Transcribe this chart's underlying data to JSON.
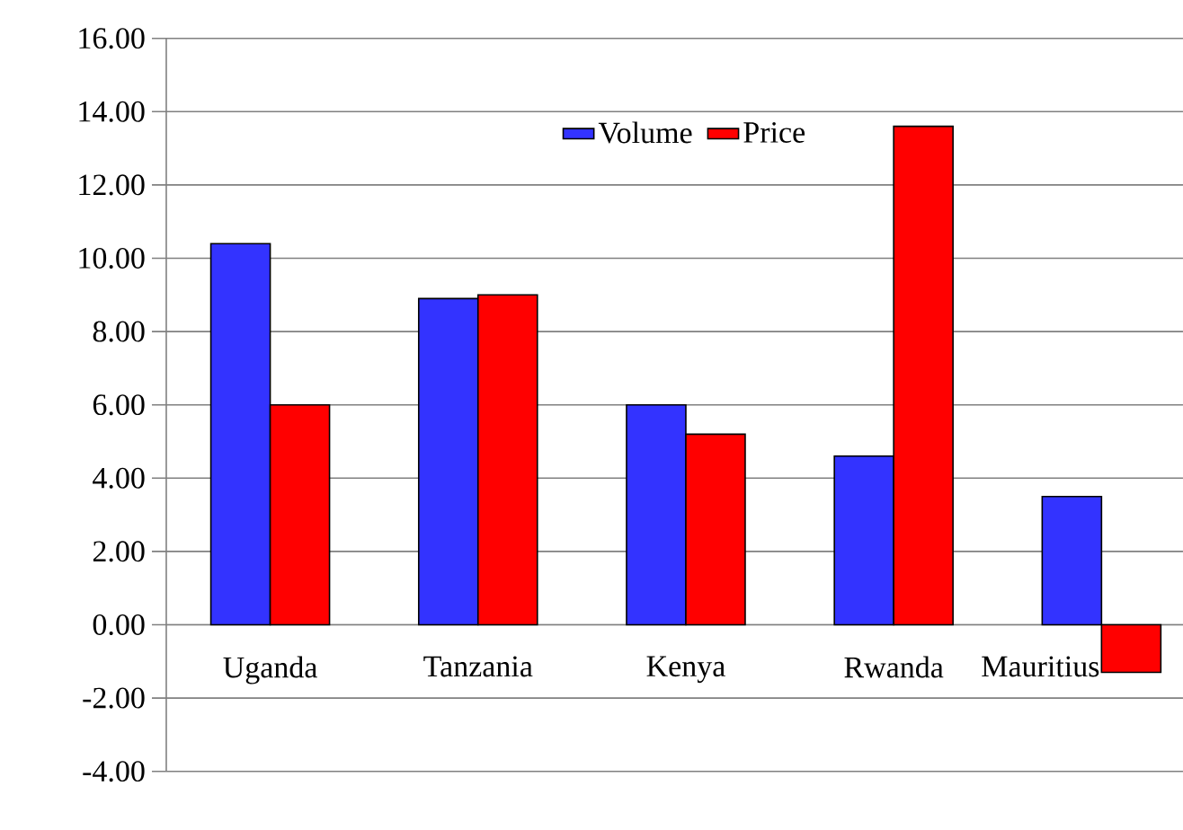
{
  "chart_data": {
    "type": "bar",
    "categories": [
      "Uganda",
      "Tanzania",
      "Kenya",
      "Rwanda",
      "Mauritius"
    ],
    "series": [
      {
        "name": "Volume",
        "color": "#3333ff",
        "values": [
          10.4,
          8.9,
          6.0,
          4.6,
          3.5
        ]
      },
      {
        "name": "Price",
        "color": "#ff0000",
        "values": [
          6.0,
          9.0,
          5.2,
          13.6,
          -1.3
        ]
      }
    ],
    "ylim": [
      -4,
      16
    ],
    "yticks": [
      {
        "value": -4,
        "label": "-4.00"
      },
      {
        "value": -2,
        "label": "-2.00"
      },
      {
        "value": 0,
        "label": "0.00"
      },
      {
        "value": 2,
        "label": "2.00"
      },
      {
        "value": 4,
        "label": "4.00"
      },
      {
        "value": 6,
        "label": "6.00"
      },
      {
        "value": 8,
        "label": "8.00"
      },
      {
        "value": 10,
        "label": "10.00"
      },
      {
        "value": 12,
        "label": "12.00"
      },
      {
        "value": 14,
        "label": "14.00"
      },
      {
        "value": 16,
        "label": "16.00"
      }
    ],
    "grid": "y",
    "legend": "top"
  }
}
